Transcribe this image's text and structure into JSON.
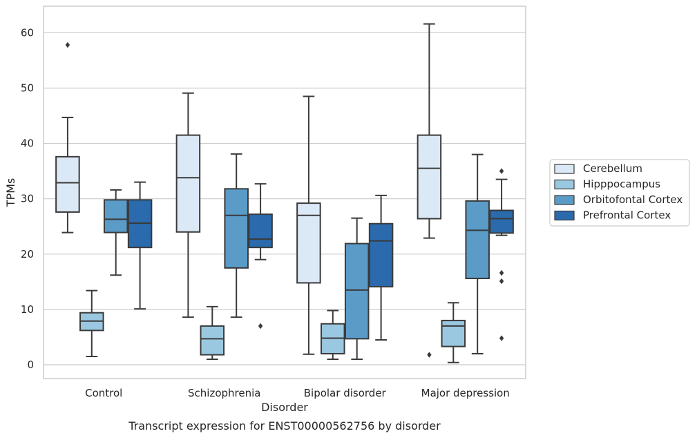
{
  "chart_data": {
    "type": "box",
    "title": "",
    "caption": "Transcript expression for ENST00000562756 by disorder",
    "xlabel": "Disorder",
    "ylabel": "TPMs",
    "ylim": [
      -2.5,
      64.8
    ],
    "yticks": [
      0,
      10,
      20,
      30,
      40,
      50,
      60
    ],
    "grid": "horizontal",
    "legend_position": "right",
    "categories": [
      "Control",
      "Schizophrenia",
      "Bipolar disorder",
      "Major depression"
    ],
    "series": [
      {
        "name": "Cerebellum",
        "color": "#dbe8f5",
        "boxes": [
          {
            "whisker_low": 23.9,
            "q1": 27.6,
            "median": 32.9,
            "q3": 37.6,
            "whisker_high": 44.7,
            "outliers": [
              57.8
            ]
          },
          {
            "whisker_low": 8.6,
            "q1": 24.0,
            "median": 33.8,
            "q3": 41.5,
            "whisker_high": 49.1,
            "outliers": []
          },
          {
            "whisker_low": 1.9,
            "q1": 14.8,
            "median": 27.0,
            "q3": 29.2,
            "whisker_high": 48.5,
            "outliers": []
          },
          {
            "whisker_low": 22.9,
            "q1": 26.4,
            "median": 35.5,
            "q3": 41.5,
            "whisker_high": 61.6,
            "outliers": [
              1.8
            ]
          }
        ]
      },
      {
        "name": "Hipppocampus",
        "color": "#9ac8e0",
        "boxes": [
          {
            "whisker_low": 1.5,
            "q1": 6.2,
            "median": 7.9,
            "q3": 9.4,
            "whisker_high": 13.4,
            "outliers": []
          },
          {
            "whisker_low": 1.0,
            "q1": 1.8,
            "median": 4.7,
            "q3": 7.0,
            "whisker_high": 10.5,
            "outliers": []
          },
          {
            "whisker_low": 1.0,
            "q1": 2.0,
            "median": 4.8,
            "q3": 7.4,
            "whisker_high": 9.8,
            "outliers": []
          },
          {
            "whisker_low": 0.4,
            "q1": 3.3,
            "median": 7.0,
            "q3": 8.0,
            "whisker_high": 11.2,
            "outliers": []
          }
        ]
      },
      {
        "name": "Orbitofontal Cortex",
        "color": "#5a9bc8",
        "boxes": [
          {
            "whisker_low": 16.2,
            "q1": 23.9,
            "median": 26.3,
            "q3": 29.8,
            "whisker_high": 31.6,
            "outliers": []
          },
          {
            "whisker_low": 8.6,
            "q1": 17.5,
            "median": 27.0,
            "q3": 31.8,
            "whisker_high": 38.1,
            "outliers": []
          },
          {
            "whisker_low": 1.0,
            "q1": 4.7,
            "median": 13.5,
            "q3": 21.9,
            "whisker_high": 26.5,
            "outliers": []
          },
          {
            "whisker_low": 2.0,
            "q1": 15.6,
            "median": 24.3,
            "q3": 29.6,
            "whisker_high": 38.0,
            "outliers": []
          }
        ]
      },
      {
        "name": "Prefrontal Cortex",
        "color": "#2a6aad",
        "boxes": [
          {
            "whisker_low": 10.1,
            "q1": 21.2,
            "median": 25.6,
            "q3": 29.8,
            "whisker_high": 33.0,
            "outliers": []
          },
          {
            "whisker_low": 19.0,
            "q1": 21.2,
            "median": 22.7,
            "q3": 27.2,
            "whisker_high": 32.7,
            "outliers": [
              7.0
            ]
          },
          {
            "whisker_low": 4.5,
            "q1": 14.1,
            "median": 22.4,
            "q3": 25.5,
            "whisker_high": 30.6,
            "outliers": []
          },
          {
            "whisker_low": 23.4,
            "q1": 23.8,
            "median": 26.4,
            "q3": 27.9,
            "whisker_high": 33.5,
            "outliers": [
              35.0,
              16.6,
              15.1,
              4.8
            ]
          }
        ]
      }
    ]
  }
}
